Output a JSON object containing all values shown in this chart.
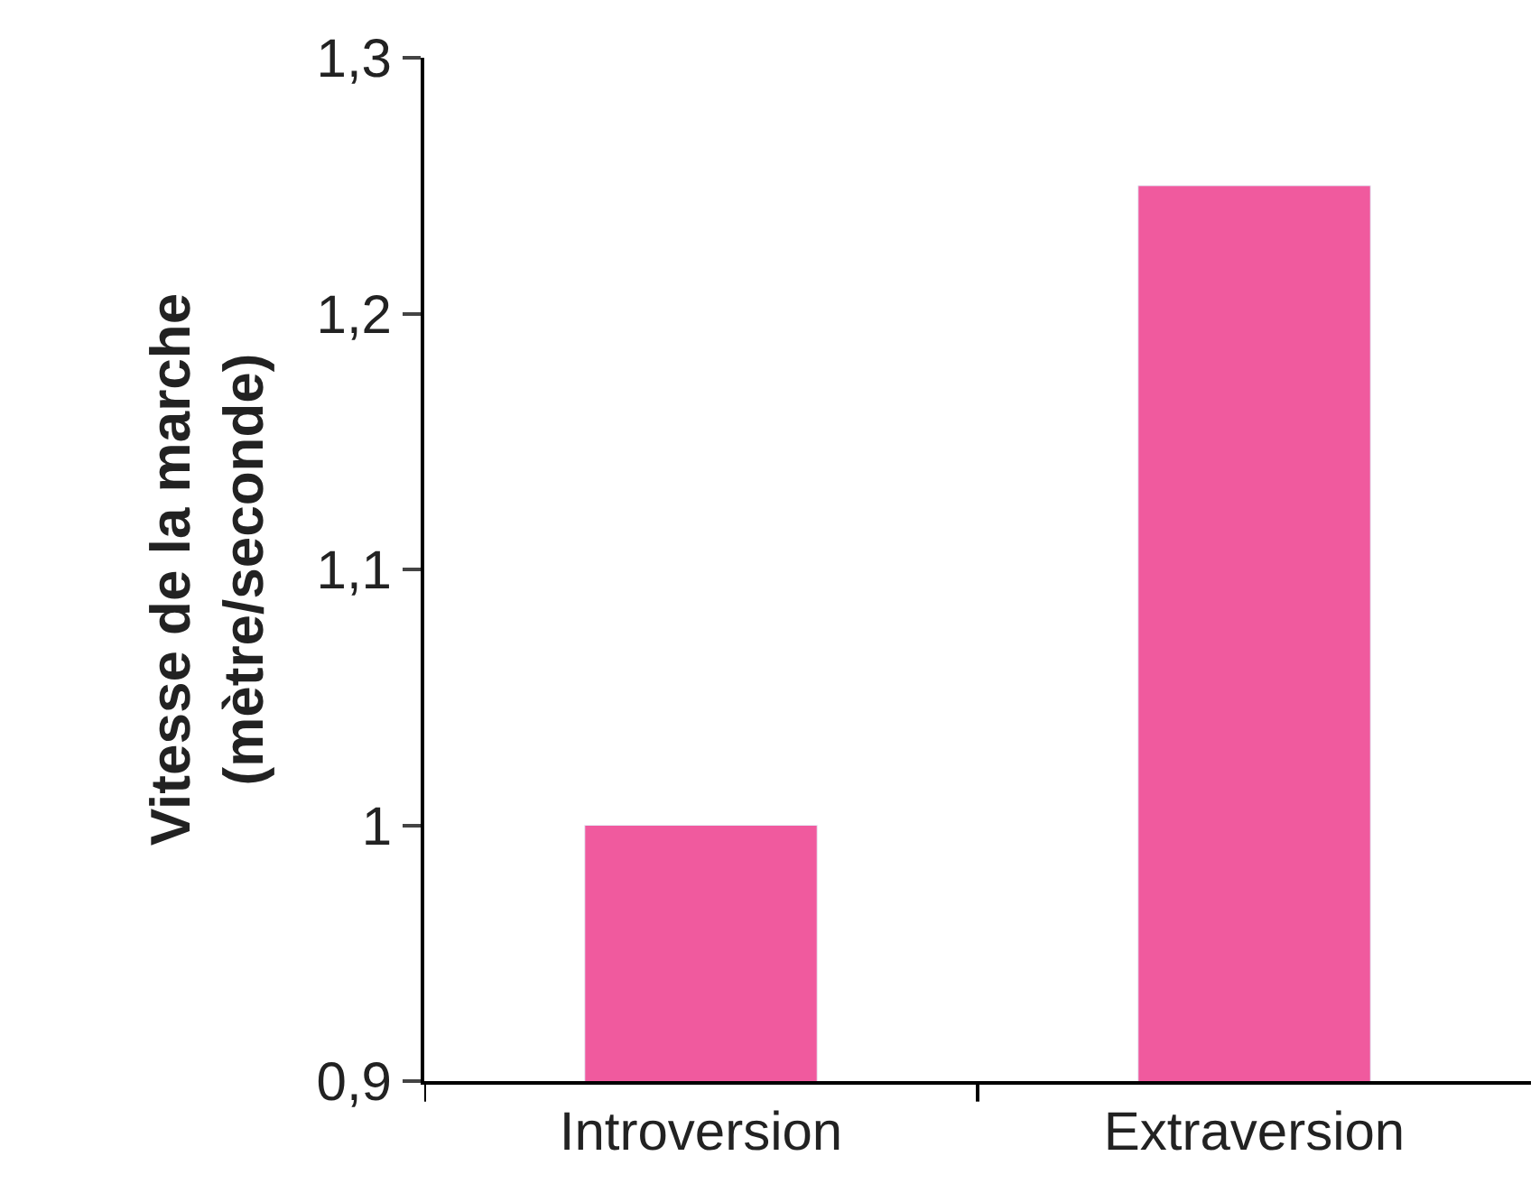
{
  "chart_data": {
    "type": "bar",
    "ylabel": "Vitesse de la marche\n(mètre/seconde)",
    "categories": [
      "Introversion",
      "Extraversion"
    ],
    "values": [
      1.0,
      1.25
    ],
    "color": "#f05a9e",
    "ylim": [
      0.9,
      1.3
    ],
    "yticks": [
      {
        "value": 0.9,
        "label": "0,9"
      },
      1,
      {
        "value": 1.1,
        "label": "1,1"
      },
      {
        "value": 1.2,
        "label": "1,2"
      },
      {
        "value": 1.3,
        "label": "1,3"
      }
    ]
  }
}
